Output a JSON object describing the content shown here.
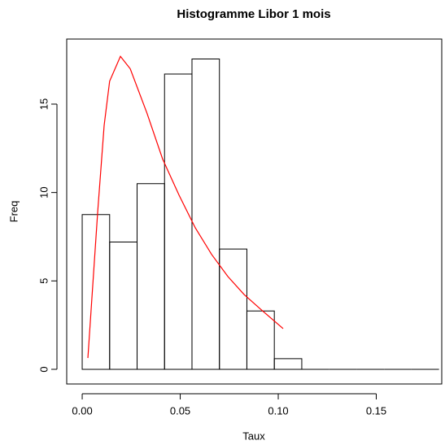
{
  "chart_data": {
    "type": "histogram",
    "title": "Histogramme Libor 1 mois",
    "x_label": "Taux",
    "y_label": "Freq",
    "bins": [
      0,
      0.014,
      0.028,
      0.042,
      0.056,
      0.07,
      0.084,
      0.098,
      0.112,
      0.126,
      0.14,
      0.154,
      0.168,
      0.182
    ],
    "values": [
      8.75,
      7.2,
      10.5,
      16.7,
      17.55,
      6.8,
      3.3,
      0.6,
      0,
      0,
      0,
      0,
      0
    ],
    "color": "#000000",
    "curve": {
      "type": "line",
      "color": "#ff0000",
      "x": [
        0.0029,
        0.0079,
        0.0112,
        0.014,
        0.0195,
        0.0245,
        0.033,
        0.041,
        0.0494,
        0.0577,
        0.066,
        0.0743,
        0.0826,
        0.091,
        0.1025
      ],
      "values": [
        0.64,
        8.9,
        13.8,
        16.3,
        17.7,
        17.0,
        14.5,
        11.9,
        9.85,
        8.0,
        6.5,
        5.25,
        4.23,
        3.4,
        2.3
      ]
    },
    "xlim": [
      -0.0079,
      0.1834
    ],
    "ylim": [
      -0.83,
      18.68
    ],
    "xticks": [
      {
        "value": 0,
        "label": "0.00"
      },
      {
        "value": 0.05,
        "label": "0.05"
      },
      {
        "value": 0.1,
        "label": "0.10"
      },
      {
        "value": 0.15,
        "label": "0.15"
      }
    ],
    "yticks": [
      0,
      5,
      10,
      15
    ]
  }
}
